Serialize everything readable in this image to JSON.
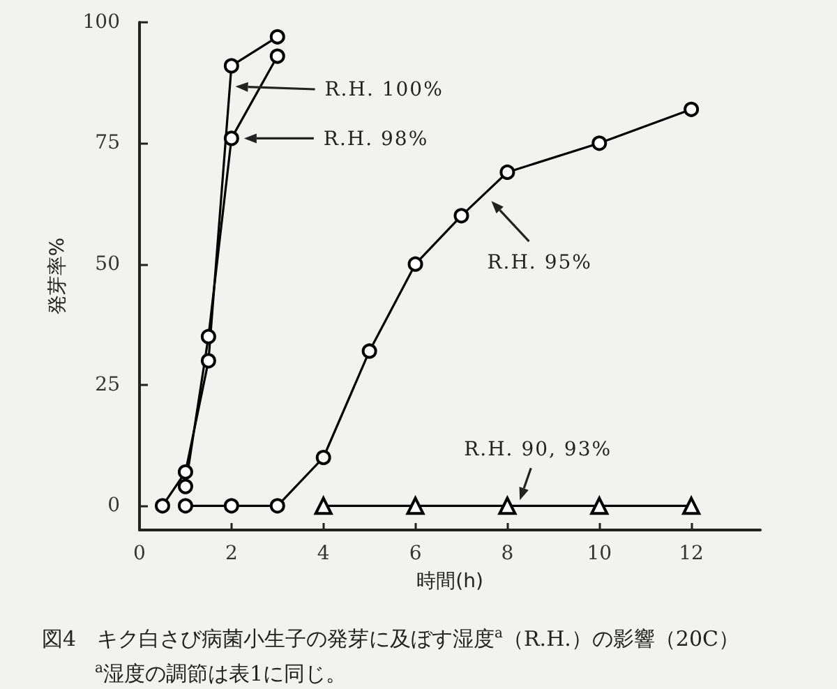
{
  "chart_data": {
    "type": "line",
    "title": "図4　キク白さび病菌小生子の発芽に及ぼす湿度$^{a}$（R.H.）の影響（20C）",
    "xlabel": "時間(h)",
    "ylabel": "発芽率%",
    "annotations": [
      "$^{a}$湿度の調節は表1に同じ。"
    ],
    "series": [
      {
        "name": "R.H. 100%",
        "color": "#000000",
        "marker": "circle",
        "x": [
          0.5,
          1,
          1.5,
          2,
          3
        ],
        "values": [
          0,
          7,
          30,
          91,
          97
        ]
      },
      {
        "name": "R.H. 98%",
        "color": "#000000",
        "marker": "circle",
        "x": [
          1,
          1.5,
          2,
          3
        ],
        "values": [
          4,
          35,
          76,
          93
        ]
      },
      {
        "name": "R.H. 95%",
        "color": "#000000",
        "marker": "circle",
        "x": [
          1,
          2,
          3,
          4,
          5,
          6,
          7,
          8,
          10,
          12
        ],
        "values": [
          0,
          0,
          0,
          10,
          32,
          50,
          60,
          69,
          75,
          82
        ]
      },
      {
        "name": "R.H. 90, 93%",
        "color": "#000000",
        "marker": "triangle",
        "x": [
          4,
          6,
          8,
          10,
          12
        ],
        "values": [
          0,
          0,
          0,
          0,
          0
        ]
      }
    ],
    "xlim": [
      0,
      13.5
    ],
    "xticks": [
      0,
      2,
      4,
      6,
      8,
      10,
      12
    ],
    "ylim": [
      -5,
      100
    ],
    "yticks": [
      0,
      25,
      50,
      75,
      100
    ],
    "grid": false,
    "legend": false,
    "line_style": "solid"
  }
}
